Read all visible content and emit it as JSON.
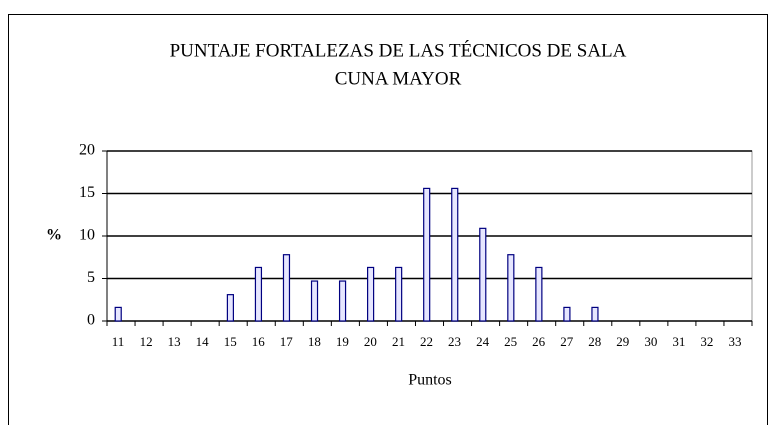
{
  "chart_data": {
    "type": "bar",
    "title": [
      "PUNTAJE FORTALEZAS DE LAS TÉCNICOS DE SALA",
      "CUNA MAYOR"
    ],
    "y_label": "%",
    "x_label": "Puntos",
    "categories": [
      "11",
      "12",
      "13",
      "14",
      "15",
      "16",
      "17",
      "18",
      "19",
      "20",
      "21",
      "22",
      "23",
      "24",
      "25",
      "26",
      "27",
      "28",
      "29",
      "30",
      "31",
      "32",
      "33"
    ],
    "values": [
      1.6,
      0,
      0,
      0,
      3.1,
      6.3,
      7.8,
      4.7,
      4.7,
      6.3,
      6.3,
      15.6,
      15.6,
      10.9,
      7.8,
      6.3,
      1.6,
      1.6,
      0,
      0,
      0,
      0,
      0
    ],
    "color": "#e6e6ff",
    "edge_color": "#000080",
    "ylim": [
      0,
      20
    ],
    "yticks": [
      0,
      5,
      10,
      15,
      20
    ],
    "grid": true
  }
}
